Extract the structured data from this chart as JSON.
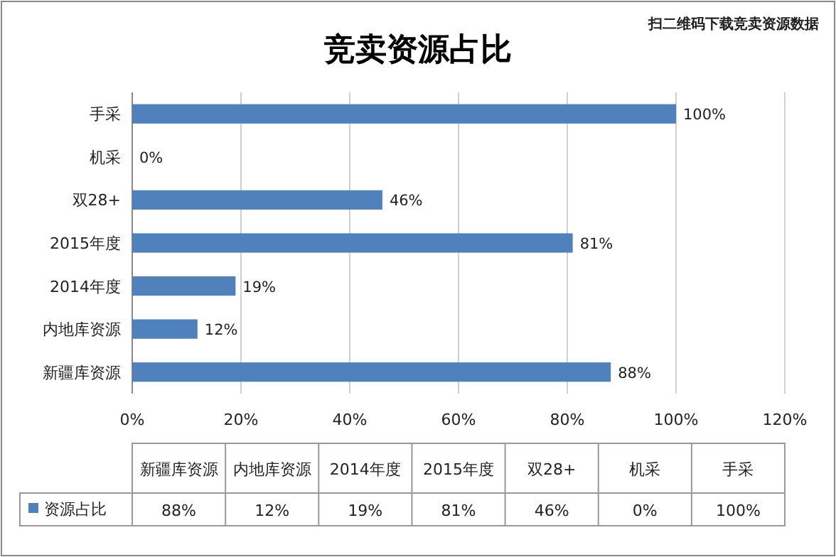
{
  "chart_data": {
    "type": "bar",
    "orientation": "horizontal",
    "title": "竞卖资源占比",
    "categories": [
      "手采",
      "机采",
      "双28+",
      "2015年度",
      "2014年度",
      "内地库资源",
      "新疆库资源"
    ],
    "series": [
      {
        "name": "资源占比",
        "color": "#4f81bd",
        "values": [
          100,
          0,
          46,
          81,
          19,
          12,
          88
        ],
        "value_labels": [
          "100%",
          "0%",
          "46%",
          "81%",
          "19%",
          "12%",
          "88%"
        ]
      }
    ],
    "xlim": [
      0,
      120
    ],
    "xticks": [
      {
        "value": 0,
        "label": "0%"
      },
      {
        "value": 20,
        "label": "20%"
      },
      {
        "value": 40,
        "label": "40%"
      },
      {
        "value": 60,
        "label": "60%"
      },
      {
        "value": 80,
        "label": "80%"
      },
      {
        "value": 100,
        "label": "100%"
      },
      {
        "value": 120,
        "label": "120%"
      }
    ],
    "grid": "x",
    "legend": "bottom",
    "annotations": [
      "扫二维码下载竞卖资源数据"
    ]
  }
}
